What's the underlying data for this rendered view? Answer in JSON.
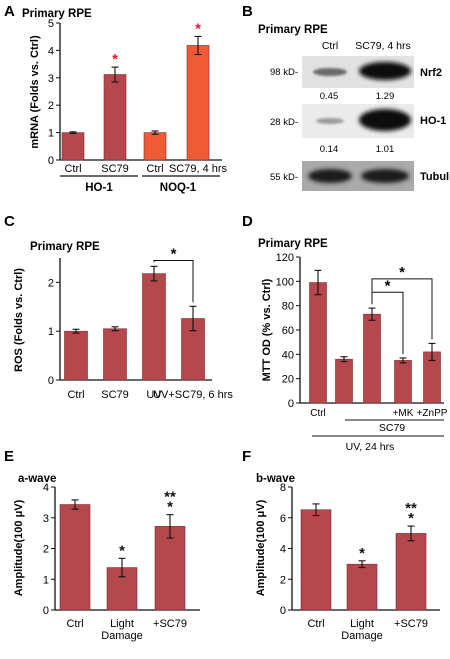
{
  "panels": [
    {
      "letter": "A",
      "title": "Primary RPE"
    },
    {
      "letter": "B",
      "title": "Primary RPE"
    },
    {
      "letter": "C",
      "title": "Primary RPE"
    },
    {
      "letter": "D",
      "title": "Primary RPE"
    },
    {
      "letter": "E",
      "title": "a-wave"
    },
    {
      "letter": "F",
      "title": "b-wave"
    }
  ],
  "chart_data": [
    {
      "id": "A",
      "type": "bar",
      "title": "Primary RPE",
      "ylabel": "mRNA (Folds vs. Ctrl)",
      "ylim": [
        0,
        5
      ],
      "yticks": [
        0,
        1,
        2,
        3,
        4,
        5
      ],
      "categories": [
        "Ctrl",
        "SC79",
        "Ctrl",
        "SC79, 4 hrs"
      ],
      "values": [
        1.0,
        3.12,
        1.0,
        4.18
      ],
      "errors": [
        0.03,
        0.27,
        0.06,
        0.33
      ],
      "bar_colors": [
        "#b5484c",
        "#b5484c",
        "#ee5b35",
        "#ee5b35"
      ],
      "sig_marks": [
        "",
        "*",
        "",
        "*"
      ],
      "sig_color": "#dd1f26",
      "groups": [
        {
          "label": "HO-1",
          "span": [
            0,
            1
          ]
        },
        {
          "label": "NOQ-1",
          "span": [
            2,
            3
          ]
        }
      ]
    },
    {
      "id": "C",
      "type": "bar",
      "title": "Primary RPE",
      "ylabel": "ROS (Folds vs. Ctrl)",
      "ylim": [
        0,
        2.5
      ],
      "yticks": [
        0,
        1,
        2
      ],
      "categories": [
        "Ctrl",
        "SC79",
        "UV",
        "UV+SC79, 6 hrs"
      ],
      "values": [
        1.0,
        1.05,
        2.18,
        1.26
      ],
      "errors": [
        0.04,
        0.04,
        0.15,
        0.25
      ],
      "bar_colors": [
        "#b5484c",
        "#b5484c",
        "#b5484c",
        "#b5484c"
      ],
      "brackets": [
        {
          "from": 2,
          "to": 3,
          "label": "*"
        }
      ]
    },
    {
      "id": "D",
      "type": "bar",
      "title": "Primary RPE",
      "ylabel": "MTT OD (% vs. Ctrl)",
      "ylim": [
        0,
        120
      ],
      "yticks": [
        0,
        20,
        40,
        60,
        80,
        100,
        120
      ],
      "categories": [
        "Ctrl",
        "",
        "",
        "+MK",
        "+ZnPP"
      ],
      "values": [
        99,
        36,
        73,
        35,
        42
      ],
      "errors": [
        10,
        2,
        5,
        2,
        7
      ],
      "bar_colors": [
        "#b5484c",
        "#b5484c",
        "#b5484c",
        "#b5484c",
        "#b5484c"
      ],
      "brackets": [
        {
          "from": 2,
          "to": 3,
          "label": "*"
        },
        {
          "from": 2,
          "to": 4,
          "label": "*"
        }
      ],
      "sub_labels": [
        "SC79",
        "UV, 24 hrs"
      ]
    },
    {
      "id": "E",
      "type": "bar",
      "title": "a-wave",
      "ylabel": "Amplitude(100 μV)",
      "ylim": [
        0,
        4
      ],
      "yticks": [
        0,
        1,
        2,
        3,
        4
      ],
      "categories": [
        "Ctrl",
        "Light Damage",
        "+SC79"
      ],
      "values": [
        3.43,
        1.38,
        2.72
      ],
      "errors": [
        0.15,
        0.3,
        0.38
      ],
      "bar_colors": [
        "#b5484c",
        "#b5484c",
        "#b5484c"
      ],
      "sig_marks": [
        "",
        "*",
        "**\n*"
      ]
    },
    {
      "id": "F",
      "type": "bar",
      "title": "b-wave",
      "ylabel": "Amplitude(100 μV)",
      "ylim": [
        0,
        8
      ],
      "yticks": [
        0,
        2,
        4,
        6,
        8
      ],
      "categories": [
        "Ctrl",
        "Light Damage",
        "+SC79"
      ],
      "values": [
        6.52,
        2.98,
        4.98
      ],
      "errors": [
        0.38,
        0.22,
        0.48
      ],
      "bar_colors": [
        "#b5484c",
        "#b5484c",
        "#b5484c"
      ],
      "sig_marks": [
        "",
        "*",
        "**\n*"
      ]
    }
  ],
  "western_blot": {
    "title": "Primary RPE",
    "lanes": [
      "Ctrl",
      "SC79, 4 hrs"
    ],
    "rows": [
      {
        "mw": "98 kD-",
        "protein": "Nrf2",
        "quant": [
          "0.45",
          "1.29"
        ]
      },
      {
        "mw": "28 kD-",
        "protein": "HO-1",
        "quant": [
          "0.14",
          "1.01"
        ]
      },
      {
        "mw": "55 kD-",
        "protein": "Tubulin",
        "quant": []
      }
    ]
  }
}
